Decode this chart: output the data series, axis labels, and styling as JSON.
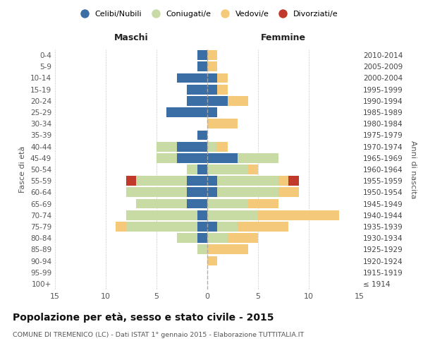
{
  "age_groups": [
    "100+",
    "95-99",
    "90-94",
    "85-89",
    "80-84",
    "75-79",
    "70-74",
    "65-69",
    "60-64",
    "55-59",
    "50-54",
    "45-49",
    "40-44",
    "35-39",
    "30-34",
    "25-29",
    "20-24",
    "15-19",
    "10-14",
    "5-9",
    "0-4"
  ],
  "birth_years": [
    "≤ 1914",
    "1915-1919",
    "1920-1924",
    "1925-1929",
    "1930-1934",
    "1935-1939",
    "1940-1944",
    "1945-1949",
    "1950-1954",
    "1955-1959",
    "1960-1964",
    "1965-1969",
    "1970-1974",
    "1975-1979",
    "1980-1984",
    "1985-1989",
    "1990-1994",
    "1995-1999",
    "2000-2004",
    "2005-2009",
    "2010-2014"
  ],
  "male": {
    "celibi": [
      0,
      0,
      0,
      0,
      1,
      1,
      1,
      2,
      2,
      2,
      1,
      3,
      3,
      1,
      0,
      4,
      2,
      2,
      3,
      1,
      1
    ],
    "coniugati": [
      0,
      0,
      0,
      1,
      2,
      7,
      7,
      5,
      6,
      5,
      1,
      2,
      2,
      0,
      0,
      0,
      0,
      0,
      0,
      0,
      0
    ],
    "vedovi": [
      0,
      0,
      0,
      0,
      0,
      1,
      0,
      0,
      0,
      0,
      0,
      0,
      0,
      0,
      0,
      0,
      0,
      0,
      0,
      0,
      0
    ],
    "divorziati": [
      0,
      0,
      0,
      0,
      0,
      0,
      0,
      0,
      0,
      1,
      0,
      0,
      0,
      0,
      0,
      0,
      0,
      0,
      0,
      0,
      0
    ]
  },
  "female": {
    "nubili": [
      0,
      0,
      0,
      0,
      0,
      1,
      0,
      0,
      1,
      1,
      0,
      3,
      0,
      0,
      0,
      1,
      2,
      1,
      1,
      0,
      0
    ],
    "coniugate": [
      0,
      0,
      0,
      0,
      2,
      2,
      5,
      4,
      6,
      6,
      4,
      4,
      1,
      0,
      0,
      0,
      0,
      0,
      0,
      0,
      0
    ],
    "vedove": [
      0,
      0,
      1,
      4,
      3,
      5,
      8,
      3,
      2,
      1,
      1,
      0,
      1,
      0,
      3,
      0,
      2,
      1,
      1,
      1,
      1
    ],
    "divorziate": [
      0,
      0,
      0,
      0,
      0,
      0,
      0,
      0,
      0,
      1,
      0,
      0,
      0,
      0,
      0,
      0,
      0,
      0,
      0,
      0,
      0
    ]
  },
  "colors": {
    "celibi_nubili": "#3a6ea5",
    "coniugati": "#c8dba4",
    "vedovi": "#f5c97a",
    "divorziati": "#c0392b"
  },
  "xlim": 15,
  "title": "Popolazione per età, sesso e stato civile - 2015",
  "subtitle": "COMUNE DI TREMENICO (LC) - Dati ISTAT 1° gennaio 2015 - Elaborazione TUTTITALIA.IT",
  "xlabel_left": "Maschi",
  "xlabel_right": "Femmine",
  "ylabel_left": "Fasce di età",
  "ylabel_right": "Anni di nascita",
  "legend_labels": [
    "Celibi/Nubili",
    "Coniugati/e",
    "Vedovi/e",
    "Divorziati/e"
  ]
}
